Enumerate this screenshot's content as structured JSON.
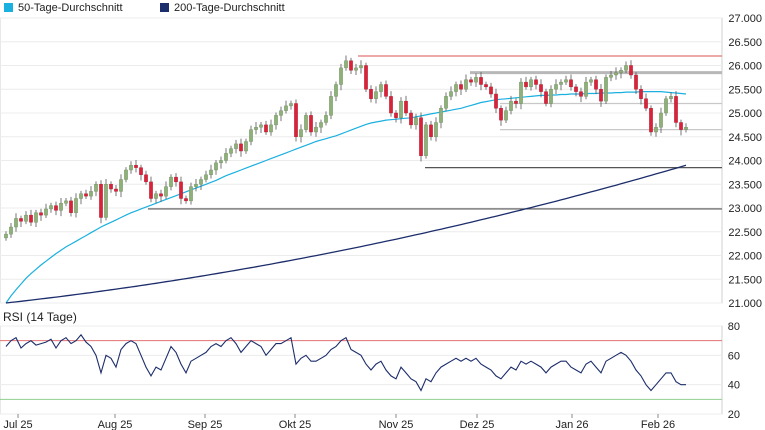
{
  "chart_data": [
    {
      "type": "candlestick",
      "legend": [
        {
          "label": "50-Tage-Durchschnitt",
          "color": "#1ab0e0"
        },
        {
          "label": "200-Tage-Durchschnitt",
          "color": "#1c2d6b"
        }
      ],
      "y_ticks": [
        "27.000",
        "26.500",
        "26.000",
        "25.500",
        "25.000",
        "24.500",
        "24.000",
        "23.500",
        "23.000",
        "22.500",
        "22.000",
        "21.500",
        "21.000"
      ],
      "ylim": [
        21000,
        27000
      ],
      "up_color": "#8fb07a",
      "down_color": "#d8233a",
      "closes": [
        22450,
        22600,
        22780,
        22720,
        22850,
        22700,
        22900,
        22850,
        22980,
        23050,
        22950,
        23100,
        23150,
        22900,
        23200,
        23300,
        23250,
        23350,
        23500,
        22800,
        23500,
        23400,
        23350,
        23600,
        23800,
        23900,
        23850,
        23700,
        23550,
        23200,
        23300,
        23250,
        23450,
        23650,
        23550,
        23200,
        23150,
        23450,
        23500,
        23600,
        23700,
        23800,
        23950,
        24000,
        24150,
        24250,
        24350,
        24200,
        24400,
        24650,
        24700,
        24750,
        24600,
        24750,
        24950,
        25050,
        25150,
        25200,
        24500,
        24650,
        24950,
        24600,
        24700,
        24800,
        24950,
        25350,
        25600,
        25950,
        26100,
        25900,
        25950,
        26000,
        25500,
        25300,
        25450,
        25600,
        25350,
        25000,
        24900,
        25250,
        25000,
        24750,
        24900,
        24100,
        24750,
        24500,
        24800,
        25100,
        25350,
        25450,
        25600,
        25500,
        25700,
        25650,
        25750,
        25600,
        25550,
        25400,
        25100,
        24850,
        25050,
        25250,
        25200,
        25650,
        25550,
        25700,
        25600,
        25450,
        25200,
        25500,
        25600,
        25650,
        25700,
        25550,
        25450,
        25350,
        25650,
        25700,
        25500,
        25250,
        25750,
        25800,
        25850,
        25900,
        26000,
        25800,
        25500,
        25300,
        25100,
        24600,
        24700,
        25000,
        25300,
        25350,
        24800,
        24650,
        24700
      ],
      "ma50": [
        21000,
        21150,
        21280,
        21400,
        21520,
        21620,
        21710,
        21800,
        21880,
        21960,
        22040,
        22110,
        22180,
        22240,
        22300,
        22360,
        22420,
        22480,
        22540,
        22600,
        22650,
        22700,
        22750,
        22800,
        22850,
        22900,
        22940,
        22980,
        23020,
        23060,
        23100,
        23140,
        23180,
        23220,
        23260,
        23300,
        23340,
        23380,
        23420,
        23460,
        23500,
        23540,
        23580,
        23630,
        23680,
        23720,
        23760,
        23800,
        23840,
        23880,
        23920,
        23960,
        24000,
        24040,
        24080,
        24120,
        24160,
        24200,
        24240,
        24280,
        24320,
        24360,
        24400,
        24430,
        24460,
        24490,
        24520,
        24560,
        24600,
        24640,
        24680,
        24720,
        24760,
        24790,
        24810,
        24830,
        24850,
        24860,
        24870,
        24880,
        24890,
        24900,
        24920,
        24940,
        24960,
        24980,
        25000,
        25020,
        25040,
        25060,
        25080,
        25100,
        25130,
        25160,
        25190,
        25220,
        25240,
        25260,
        25280,
        25290,
        25300,
        25310,
        25320,
        25330,
        25340,
        25350,
        25360,
        25370,
        25370,
        25380,
        25380,
        25390,
        25390,
        25400,
        25400,
        25400,
        25410,
        25410,
        25410,
        25420,
        25420,
        25420,
        25430,
        25430,
        25440,
        25440,
        25440,
        25450,
        25450,
        25450,
        25450,
        25450,
        25440,
        25430,
        25420,
        25410,
        25400
      ],
      "ma200_start": 21000,
      "ma200_end": 23900,
      "h_lines": [
        {
          "value": 26200,
          "color": "#e27373"
        },
        {
          "value": 25850,
          "color": "#b8b8b8"
        },
        {
          "value": 25200,
          "color": "#c8c8c8"
        },
        {
          "value": 24650,
          "color": "#c8c8c8"
        },
        {
          "value": 23850,
          "color": "#555555"
        },
        {
          "value": 22980,
          "color": "#555555"
        }
      ]
    },
    {
      "type": "line",
      "title": "RSI (14 Tage)",
      "y_ticks": [
        "80",
        "60",
        "40",
        "20"
      ],
      "ylim": [
        20,
        80
      ],
      "upper_band": 70,
      "lower_band": 30,
      "series": [
        {
          "values": [
            66,
            70,
            72,
            65,
            68,
            70,
            67,
            68,
            69,
            71,
            65,
            70,
            72,
            68,
            70,
            74,
            69,
            66,
            60,
            48,
            60,
            58,
            52,
            64,
            68,
            70,
            68,
            60,
            52,
            46,
            52,
            50,
            58,
            66,
            62,
            54,
            48,
            56,
            58,
            60,
            62,
            66,
            68,
            66,
            70,
            72,
            68,
            62,
            66,
            70,
            68,
            66,
            60,
            64,
            68,
            68,
            70,
            72,
            54,
            58,
            60,
            56,
            56,
            58,
            60,
            64,
            66,
            70,
            72,
            64,
            62,
            60,
            54,
            50,
            54,
            56,
            50,
            46,
            44,
            52,
            48,
            44,
            42,
            36,
            44,
            42,
            48,
            52,
            54,
            56,
            58,
            56,
            58,
            56,
            58,
            54,
            52,
            50,
            46,
            44,
            48,
            52,
            50,
            56,
            54,
            56,
            54,
            52,
            48,
            52,
            54,
            56,
            56,
            52,
            50,
            48,
            54,
            56,
            52,
            48,
            56,
            58,
            60,
            62,
            60,
            56,
            50,
            46,
            40,
            36,
            40,
            44,
            48,
            48,
            42,
            40,
            40
          ]
        }
      ]
    }
  ],
  "x_ticks": [
    "Jul 25",
    "Aug 25",
    "Sep 25",
    "Okt 25",
    "Nov 25",
    "Dez 25",
    "Jan 26",
    "Feb 26"
  ]
}
